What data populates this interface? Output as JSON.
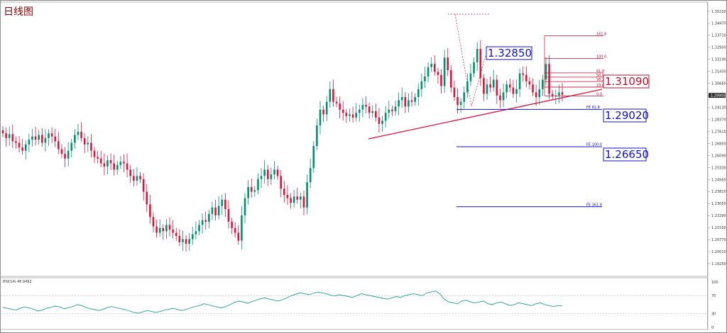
{
  "window": {
    "title": "日线图"
  },
  "colors": {
    "bull": "#009070",
    "bear": "#dc143c",
    "fib": "#c01030",
    "fe": "#1010d0",
    "rsi": "#20a090",
    "grid": "#e0e0e0",
    "trend": "#dc143c"
  },
  "price_axis": {
    "ticks": [
      "1.35230",
      "1.34470",
      "1.33710",
      "1.32950",
      "1.32190",
      "1.31430",
      "1.30665",
      "1.29905",
      "1.29130",
      "1.28370",
      "1.27610",
      "1.26850",
      "1.26090",
      "1.25330",
      "1.24565",
      "1.23810",
      "1.23050",
      "1.22290",
      "1.21530",
      "1.20770",
      "1.20010",
      "1.19250"
    ],
    "current": "1.29905",
    "min": 1.1925,
    "max": 1.3523
  },
  "rsi": {
    "label": "RSI(14) 46.9492",
    "ticks": [
      "100",
      "70",
      "30",
      "0"
    ],
    "series": [
      44,
      42,
      40,
      38,
      42,
      45,
      43,
      40,
      36,
      38,
      42,
      44,
      47,
      45,
      41,
      43,
      46,
      50,
      48,
      44,
      41,
      39,
      37,
      40,
      44,
      46,
      43,
      41,
      39,
      36,
      33,
      31,
      34,
      37,
      35,
      33,
      35,
      38,
      40,
      42,
      39,
      37,
      40,
      43,
      46,
      48,
      52,
      50,
      47,
      45,
      43,
      46,
      50,
      55,
      58,
      56,
      53,
      57,
      60,
      63,
      65,
      62,
      60,
      58,
      61,
      65,
      70,
      73,
      76,
      74,
      72,
      75,
      78,
      76,
      74,
      71,
      69,
      72,
      70,
      68,
      66,
      70,
      74,
      72,
      70,
      68,
      66,
      64,
      62,
      65,
      68,
      66,
      70,
      72,
      74,
      72,
      70,
      76,
      78,
      80,
      74,
      62,
      56,
      54,
      52,
      58,
      60,
      56,
      54,
      56,
      58,
      52,
      50,
      54,
      56,
      52,
      48,
      50,
      54,
      52,
      50,
      48,
      52,
      54,
      50,
      48,
      46,
      48,
      47
    ]
  },
  "chart_data": {
    "type": "candlestick",
    "title": "日线图",
    "ylim": [
      1.1925,
      1.3523
    ],
    "closes": [
      1.275,
      1.272,
      1.2745,
      1.27,
      1.269,
      1.266,
      1.264,
      1.268,
      1.271,
      1.273,
      1.271,
      1.274,
      1.269,
      1.272,
      1.275,
      1.273,
      1.27,
      1.265,
      1.262,
      1.259,
      1.264,
      1.269,
      1.274,
      1.276,
      1.272,
      1.268,
      1.269,
      1.264,
      1.26,
      1.259,
      1.256,
      1.254,
      1.258,
      1.256,
      1.252,
      1.255,
      1.257,
      1.256,
      1.252,
      1.248,
      1.245,
      1.248,
      1.246,
      1.238,
      1.23,
      1.222,
      1.216,
      1.212,
      1.215,
      1.213,
      1.217,
      1.214,
      1.212,
      1.21,
      1.206,
      1.208,
      1.205,
      1.208,
      1.211,
      1.213,
      1.217,
      1.22,
      1.219,
      1.224,
      1.228,
      1.223,
      1.229,
      1.233,
      1.227,
      1.219,
      1.215,
      1.212,
      1.207,
      1.223,
      1.234,
      1.241,
      1.238,
      1.239,
      1.246,
      1.248,
      1.252,
      1.246,
      1.249,
      1.252,
      1.248,
      1.24,
      1.236,
      1.234,
      1.231,
      1.235,
      1.233,
      1.235,
      1.228,
      1.244,
      1.253,
      1.267,
      1.28,
      1.29,
      1.287,
      1.295,
      1.303,
      1.295,
      1.294,
      1.29,
      1.288,
      1.286,
      1.287,
      1.285,
      1.288,
      1.29,
      1.293,
      1.292,
      1.288,
      1.289,
      1.285,
      1.281,
      1.283,
      1.288,
      1.29,
      1.289,
      1.292,
      1.296,
      1.298,
      1.292,
      1.296,
      1.295,
      1.298,
      1.303,
      1.308,
      1.311,
      1.317,
      1.319,
      1.314,
      1.312,
      1.305,
      1.323,
      1.315,
      1.304,
      1.298,
      1.293,
      1.295,
      1.301,
      1.308,
      1.313,
      1.32,
      1.3285,
      1.31,
      1.3,
      1.306,
      1.304,
      1.309,
      1.299,
      1.296,
      1.301,
      1.306,
      1.304,
      1.3,
      1.303,
      1.313,
      1.312,
      1.308,
      1.306,
      1.301,
      1.298,
      1.303,
      1.309,
      1.319,
      1.3,
      1.299,
      1.299,
      1.301,
      1.2995
    ],
    "yaxis_ticks": [
      "1.35230",
      "1.34470",
      "1.33710",
      "1.32950",
      "1.32190",
      "1.31430",
      "1.30665",
      "1.29905",
      "1.29130",
      "1.28370",
      "1.27610",
      "1.26850",
      "1.26090",
      "1.25330",
      "1.24565",
      "1.23810",
      "1.23050",
      "1.22290",
      "1.21530",
      "1.20770",
      "1.20010",
      "1.19250"
    ],
    "annotations": [
      {
        "text": "1.32850",
        "value": 1.3285,
        "color": "fe"
      },
      {
        "text": "1.31090",
        "value": 1.3109,
        "color": "fib"
      },
      {
        "text": "1.29020",
        "value": 1.2902,
        "color": "fe"
      },
      {
        "text": "1.26650",
        "value": 1.2665,
        "color": "fe"
      }
    ],
    "fib_levels": [
      {
        "label": "161.8",
        "value": 1.3368
      },
      {
        "label": "100.0",
        "value": 1.3224
      },
      {
        "label": "61.8",
        "value": 1.3133
      },
      {
        "label": "50.0",
        "value": 1.3106
      },
      {
        "label": "38.2",
        "value": 1.3078
      },
      {
        "label": "23.6",
        "value": 1.3043
      },
      {
        "label": "0.0",
        "value": 1.2987
      }
    ],
    "fe_levels": [
      {
        "label": "FE 61.8",
        "value": 1.2902
      },
      {
        "label": "FE 100.0",
        "value": 1.2665
      },
      {
        "label": "FE 161.8",
        "value": 1.2285
      }
    ],
    "grid": false,
    "legend": "none"
  }
}
